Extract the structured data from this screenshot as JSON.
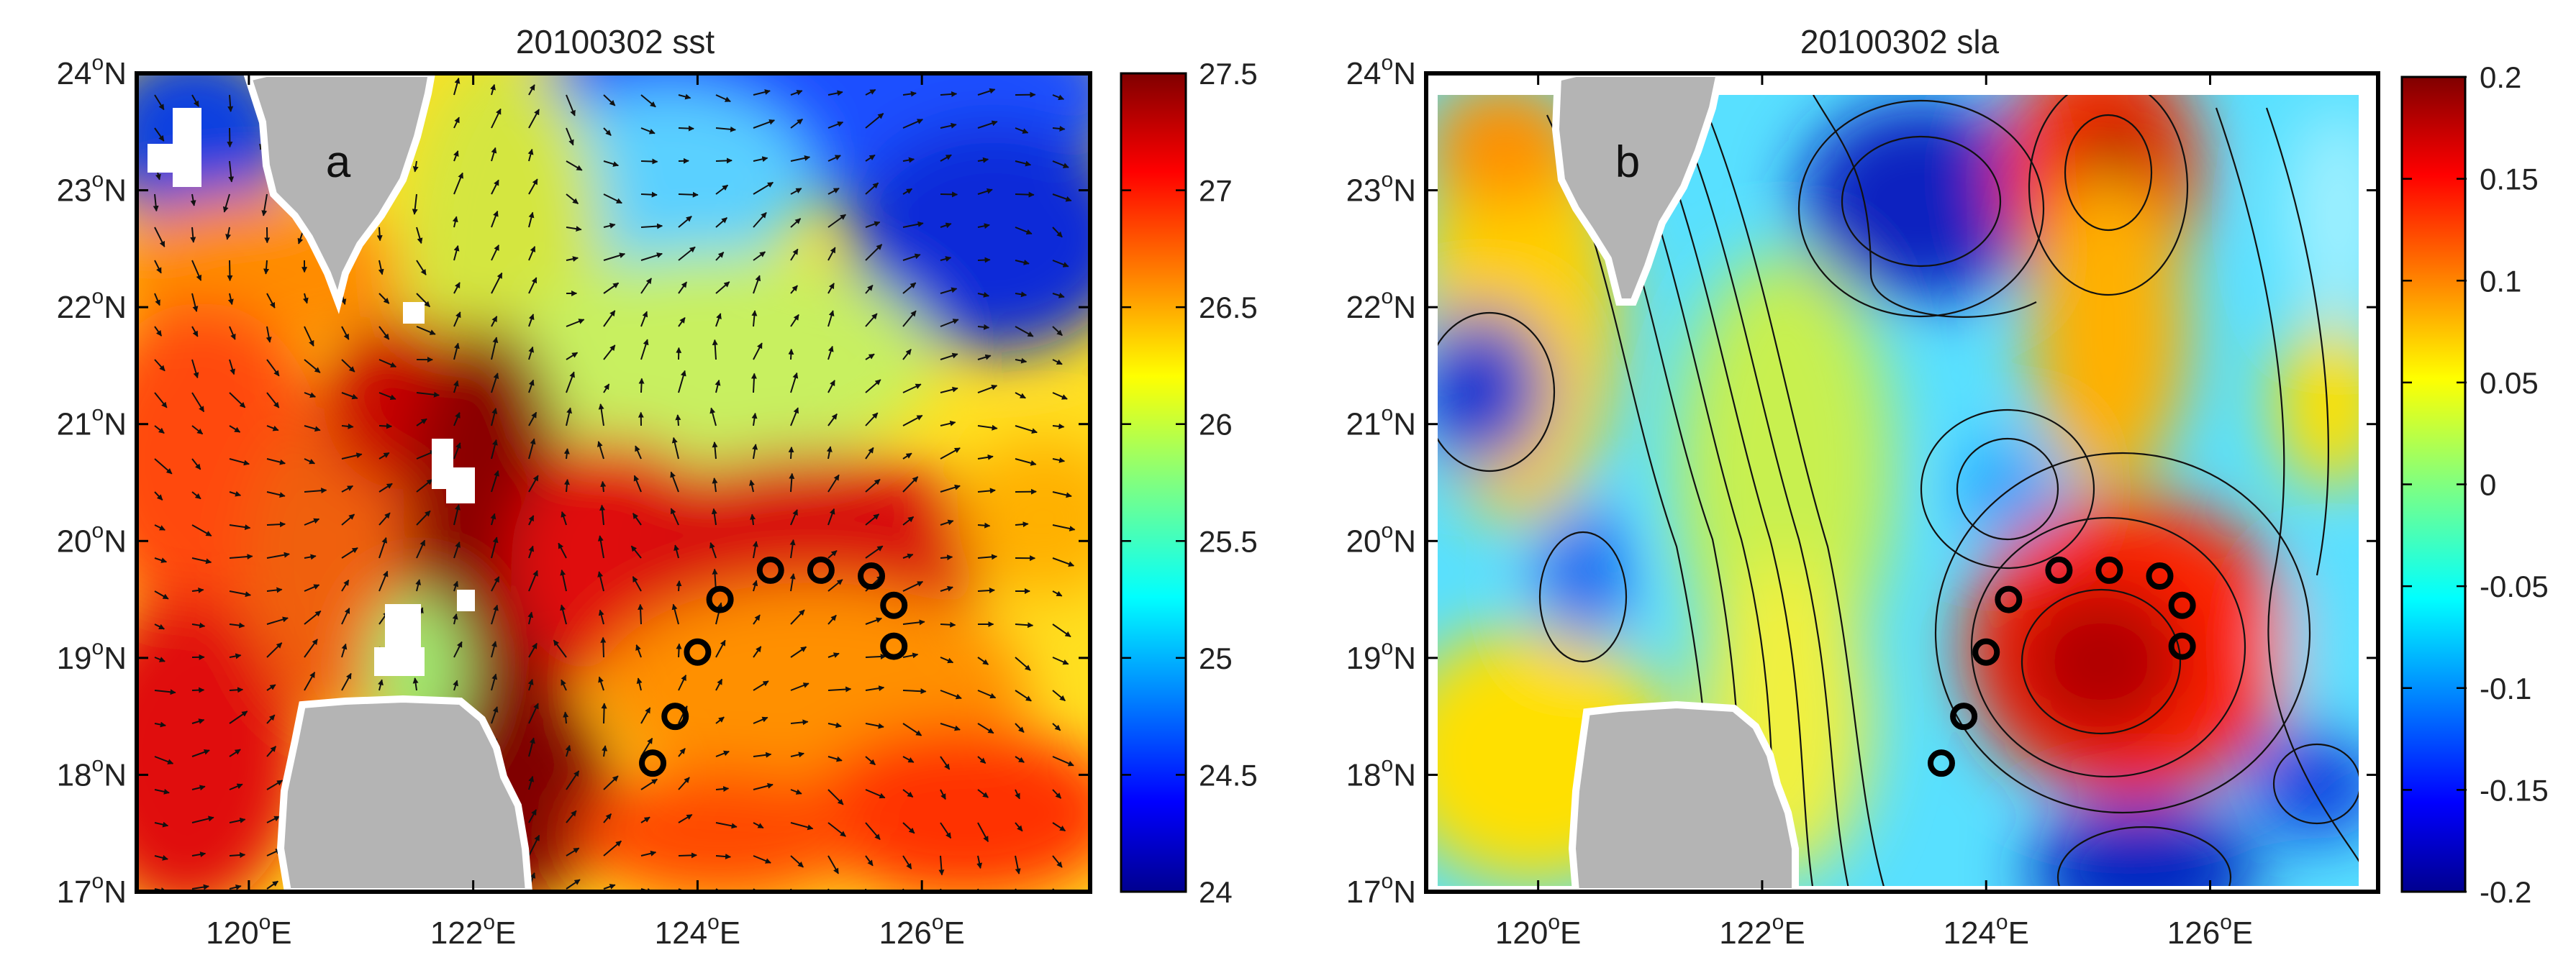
{
  "panels": [
    {
      "id": "a",
      "title": "20100302 sst",
      "panel_label": "a",
      "colorbar_ticks": [
        "27.5",
        "27",
        "26.5",
        "26",
        "25.5",
        "25",
        "24.5",
        "24"
      ],
      "colorbar_range": [
        24,
        27.5
      ]
    },
    {
      "id": "b",
      "title": "20100302 sla",
      "panel_label": "b",
      "colorbar_ticks": [
        "0.2",
        "0.15",
        "0.1",
        "0.05",
        "0",
        "-0.05",
        "-0.1",
        "-0.15",
        "-0.2"
      ],
      "colorbar_range": [
        -0.2,
        0.2
      ]
    }
  ],
  "axes": {
    "lon_ticks": [
      {
        "value": 120,
        "label": "120",
        "sup": "o",
        "suffix": "E"
      },
      {
        "value": 122,
        "label": "122",
        "sup": "o",
        "suffix": "E"
      },
      {
        "value": 124,
        "label": "124",
        "sup": "o",
        "suffix": "E"
      },
      {
        "value": 126,
        "label": "126",
        "sup": "o",
        "suffix": "E"
      }
    ],
    "lat_ticks": [
      {
        "value": 24,
        "label": "24",
        "sup": "o",
        "suffix": "N"
      },
      {
        "value": 23,
        "label": "23",
        "sup": "o",
        "suffix": "N"
      },
      {
        "value": 22,
        "label": "22",
        "sup": "o",
        "suffix": "N"
      },
      {
        "value": 21,
        "label": "21",
        "sup": "o",
        "suffix": "N"
      },
      {
        "value": 20,
        "label": "20",
        "sup": "o",
        "suffix": "N"
      },
      {
        "value": 19,
        "label": "19",
        "sup": "o",
        "suffix": "N"
      },
      {
        "value": 18,
        "label": "18",
        "sup": "o",
        "suffix": "N"
      },
      {
        "value": 17,
        "label": "17",
        "sup": "o",
        "suffix": "N"
      }
    ],
    "lon_range": [
      119,
      127.5
    ],
    "lat_range": [
      17,
      24
    ]
  },
  "stations": [
    {
      "lon": 123.6,
      "lat": 18.1
    },
    {
      "lon": 123.8,
      "lat": 18.5
    },
    {
      "lon": 124.0,
      "lat": 19.05
    },
    {
      "lon": 124.2,
      "lat": 19.5
    },
    {
      "lon": 124.65,
      "lat": 19.75
    },
    {
      "lon": 125.1,
      "lat": 19.75
    },
    {
      "lon": 125.55,
      "lat": 19.7
    },
    {
      "lon": 125.75,
      "lat": 19.45
    },
    {
      "lon": 125.75,
      "lat": 19.1
    }
  ],
  "colors": {
    "land": "#b4b4b4",
    "station": "#000000",
    "frame": "#000000"
  }
}
